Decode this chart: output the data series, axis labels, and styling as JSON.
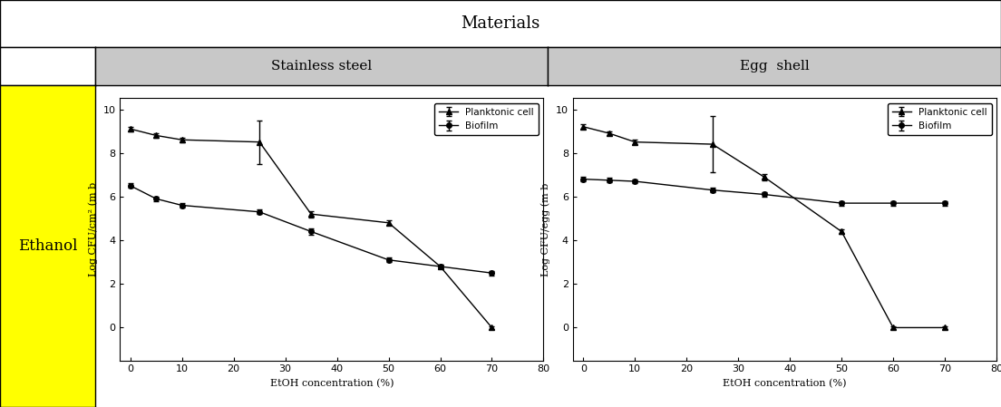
{
  "title": "Materials",
  "row_label": "Ethanol",
  "col_labels": [
    "Stainless steel",
    "Egg  shell"
  ],
  "x_label": "EtOH concentration (%)",
  "x_ticks": [
    0,
    10,
    20,
    30,
    40,
    50,
    60,
    70,
    80
  ],
  "y_ticks": [
    0,
    2,
    4,
    6,
    8,
    10
  ],
  "ylim": [
    -1.5,
    10.5
  ],
  "xlim": [
    -2,
    80
  ],
  "ss_biofilm_x": [
    0,
    5,
    10,
    25,
    35,
    50,
    60,
    70
  ],
  "ss_biofilm_y": [
    6.5,
    5.9,
    5.6,
    5.3,
    4.4,
    3.1,
    2.8,
    2.5
  ],
  "ss_biofilm_yerr": [
    0.1,
    0.1,
    0.1,
    0.1,
    0.15,
    0.1,
    0.1,
    0.1
  ],
  "ss_planktonic_x": [
    0,
    5,
    10,
    25,
    35,
    50,
    60,
    70
  ],
  "ss_planktonic_y": [
    9.1,
    8.8,
    8.6,
    8.5,
    5.2,
    4.8,
    2.8,
    0.0
  ],
  "ss_planktonic_yerr": [
    0.1,
    0.1,
    0.1,
    1.0,
    0.15,
    0.1,
    0.1,
    0.05
  ],
  "es_biofilm_x": [
    0,
    5,
    10,
    25,
    35,
    50,
    60,
    70
  ],
  "es_biofilm_y": [
    6.8,
    6.75,
    6.7,
    6.3,
    6.1,
    5.7,
    5.7,
    5.7
  ],
  "es_biofilm_yerr": [
    0.1,
    0.1,
    0.1,
    0.1,
    0.1,
    0.1,
    0.1,
    0.1
  ],
  "es_planktonic_x": [
    0,
    5,
    10,
    25,
    35,
    50,
    60,
    70
  ],
  "es_planktonic_y": [
    9.2,
    8.9,
    8.5,
    8.4,
    6.9,
    4.4,
    0.0,
    0.0
  ],
  "es_planktonic_yerr": [
    0.1,
    0.1,
    0.1,
    1.3,
    0.15,
    0.1,
    0.05,
    0.05
  ],
  "ylabel_ss": "Log CFU/cm² (m b",
  "ylabel_es": "Log CFU/egg (m b",
  "legend_labels": [
    "Biofilm",
    "Planktonic cell"
  ],
  "bg_yellow": "#FFFF00",
  "bg_gray": "#C8C8C8",
  "bg_white": "#FFFFFF",
  "fontsize_title": 13,
  "fontsize_col": 11,
  "fontsize_row": 12,
  "fontsize_axis": 8,
  "fontsize_tick": 8,
  "fontsize_legend": 7.5
}
